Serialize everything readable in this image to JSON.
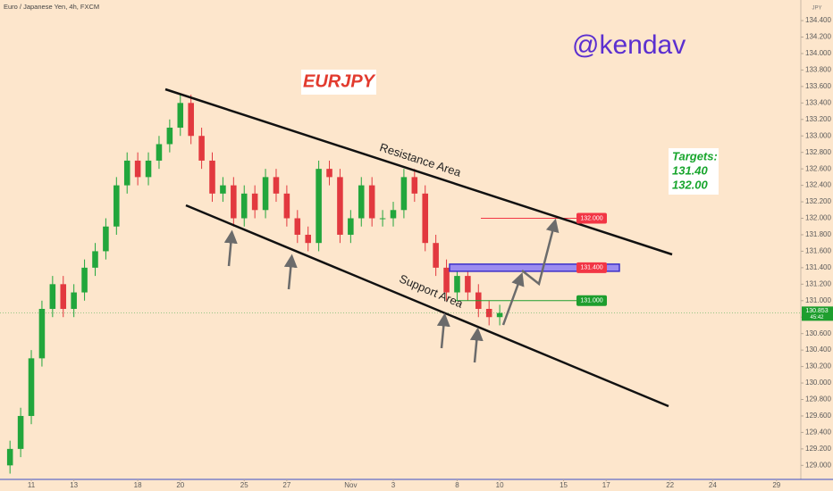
{
  "chart_data": {
    "type": "candlestick",
    "title": "EURJPY",
    "subtitle": "Euro / Japanese Yen, 4h, FXCM",
    "currency": "JPY",
    "x": [
      -1,
      -0.5,
      0,
      0.5,
      1,
      1.5,
      2,
      2.5,
      3,
      3.5,
      4,
      4.5,
      5,
      5.5,
      6,
      6.5,
      7,
      7.5,
      8,
      8.5,
      9,
      9.5,
      10,
      10.5,
      11,
      11.5,
      12,
      12.5,
      13,
      13.5,
      14,
      14.5,
      15,
      15.5,
      16,
      16.5,
      17,
      17.5,
      18,
      18.5,
      19,
      19.5,
      20,
      20.5,
      21,
      21.5,
      22
    ],
    "open": [
      129.0,
      129.2,
      129.6,
      130.3,
      130.9,
      131.2,
      130.9,
      131.1,
      131.4,
      131.6,
      131.9,
      132.4,
      132.7,
      132.5,
      132.7,
      132.9,
      133.1,
      133.4,
      133.0,
      132.7,
      132.3,
      132.4,
      132.0,
      132.3,
      132.1,
      132.5,
      132.3,
      132.0,
      131.8,
      131.7,
      132.6,
      132.5,
      131.8,
      132.0,
      132.4,
      132.0,
      132.0,
      132.1,
      132.5,
      132.3,
      131.7,
      131.4,
      131.1,
      131.3,
      131.1,
      130.9,
      130.8
    ],
    "high": [
      129.3,
      129.7,
      130.4,
      131.0,
      131.3,
      131.3,
      131.2,
      131.5,
      131.7,
      132.0,
      132.5,
      132.8,
      132.8,
      132.8,
      133.0,
      133.2,
      133.5,
      133.5,
      133.1,
      132.8,
      132.5,
      132.5,
      132.4,
      132.4,
      132.6,
      132.6,
      132.4,
      132.1,
      131.9,
      132.7,
      132.7,
      132.6,
      132.1,
      132.5,
      132.5,
      132.1,
      132.2,
      132.6,
      132.6,
      132.4,
      131.8,
      131.5,
      131.4,
      131.4,
      131.2,
      131.0,
      130.95
    ],
    "low": [
      128.9,
      129.1,
      129.5,
      130.2,
      130.8,
      130.8,
      130.8,
      131.0,
      131.3,
      131.5,
      131.8,
      132.3,
      132.4,
      132.4,
      132.6,
      132.8,
      133.0,
      132.9,
      132.6,
      132.2,
      132.2,
      131.9,
      131.9,
      132.0,
      132.0,
      132.2,
      131.9,
      131.7,
      131.6,
      131.6,
      132.4,
      131.7,
      131.7,
      131.9,
      131.9,
      131.9,
      131.9,
      132.0,
      132.2,
      131.6,
      131.3,
      131.0,
      131.0,
      131.0,
      130.8,
      130.7,
      130.7
    ],
    "close": [
      129.2,
      129.6,
      130.3,
      130.9,
      131.2,
      130.9,
      131.1,
      131.4,
      131.6,
      131.9,
      132.4,
      132.7,
      132.5,
      132.7,
      132.9,
      133.1,
      133.4,
      133.0,
      132.7,
      132.3,
      132.4,
      132.0,
      132.3,
      132.1,
      132.5,
      132.3,
      132.0,
      131.8,
      131.7,
      132.6,
      132.5,
      131.8,
      132.0,
      132.4,
      132.0,
      132.0,
      132.1,
      132.5,
      132.3,
      131.7,
      131.4,
      131.1,
      131.3,
      131.1,
      130.9,
      130.8,
      130.85
    ],
    "up_color": "#22a63c",
    "down_color": "#e2393f",
    "xlim": [
      -1.47,
      36.1
    ],
    "xticks": [
      {
        "value": 0,
        "label": "11"
      },
      {
        "value": 2,
        "label": "13"
      },
      {
        "value": 5,
        "label": "18"
      },
      {
        "value": 7,
        "label": "20"
      },
      {
        "value": 10,
        "label": "25"
      },
      {
        "value": 12,
        "label": "27"
      },
      {
        "value": 15,
        "label": "Nov"
      },
      {
        "value": 17,
        "label": "3"
      },
      {
        "value": 20,
        "label": "8"
      },
      {
        "value": 22,
        "label": "10"
      },
      {
        "value": 25,
        "label": "15"
      },
      {
        "value": 27,
        "label": "17"
      },
      {
        "value": 30,
        "label": "22"
      },
      {
        "value": 32,
        "label": "24"
      },
      {
        "value": 35,
        "label": "29"
      }
    ],
    "ylim": [
      128.83,
      134.65
    ],
    "yticks": [
      {
        "value": 129.0,
        "label": "129.000"
      },
      {
        "value": 129.2,
        "label": "129.200"
      },
      {
        "value": 129.4,
        "label": "129.400"
      },
      {
        "value": 129.6,
        "label": "129.600"
      },
      {
        "value": 129.8,
        "label": "129.800"
      },
      {
        "value": 130.0,
        "label": "130.000"
      },
      {
        "value": 130.2,
        "label": "130.200"
      },
      {
        "value": 130.4,
        "label": "130.400"
      },
      {
        "value": 130.6,
        "label": "130.600"
      },
      {
        "value": 130.8,
        "label": "130.800"
      },
      {
        "value": 131.0,
        "label": "131.000"
      },
      {
        "value": 131.2,
        "label": "131.200"
      },
      {
        "value": 131.4,
        "label": "131.400"
      },
      {
        "value": 131.6,
        "label": "131.600"
      },
      {
        "value": 131.8,
        "label": "131.800"
      },
      {
        "value": 132.0,
        "label": "132.000"
      },
      {
        "value": 132.2,
        "label": "132.200"
      },
      {
        "value": 132.4,
        "label": "132.400"
      },
      {
        "value": 132.6,
        "label": "132.600"
      },
      {
        "value": 132.8,
        "label": "132.800"
      },
      {
        "value": 133.0,
        "label": "133.000"
      },
      {
        "value": 133.2,
        "label": "133.200"
      },
      {
        "value": 133.4,
        "label": "133.400"
      },
      {
        "value": 133.6,
        "label": "133.600"
      },
      {
        "value": 133.8,
        "label": "133.800"
      },
      {
        "value": 134.0,
        "label": "134.000"
      },
      {
        "value": 134.2,
        "label": "134.200"
      },
      {
        "value": 134.4,
        "label": "134.400"
      }
    ],
    "grid": false,
    "annotations": {
      "author": "@kendav",
      "resistance": "Resistance Area",
      "support": "Support Area",
      "targets_title": "Targets:",
      "targets": [
        "131.40",
        "132.00"
      ]
    },
    "levels": [
      {
        "value": 132.0,
        "label": "132.000",
        "color": "#f23645"
      },
      {
        "value": 131.4,
        "label": "131.400",
        "color": "#f23645"
      },
      {
        "value": 131.0,
        "label": "131.000",
        "color": "#1e9e2e"
      }
    ],
    "last_price": {
      "value": 130.853,
      "label": "130.853",
      "countdown": "45:42",
      "color": "#1e9e2e"
    }
  }
}
